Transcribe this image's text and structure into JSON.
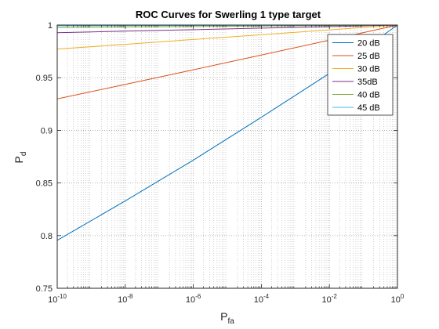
{
  "chart_data": {
    "type": "line",
    "title": "ROC Curves for Swerling 1 type target",
    "xlabel": {
      "base": "P",
      "sub": "fa"
    },
    "ylabel": {
      "base": "P",
      "sub": "d"
    },
    "xscale": "log",
    "xlim": [
      1e-10,
      1
    ],
    "ylim": [
      0.75,
      1
    ],
    "grid": true,
    "legend_position": "top-right",
    "x_ticks": [
      {
        "value": 1e-10,
        "base": "10",
        "exp": "-10"
      },
      {
        "value": 1e-08,
        "base": "10",
        "exp": "-8"
      },
      {
        "value": 1e-06,
        "base": "10",
        "exp": "-6"
      },
      {
        "value": 0.0001,
        "base": "10",
        "exp": "-4"
      },
      {
        "value": 0.01,
        "base": "10",
        "exp": "-2"
      },
      {
        "value": 1,
        "base": "10",
        "exp": "0"
      }
    ],
    "y_ticks": [
      {
        "value": 0.75,
        "label": "0.75"
      },
      {
        "value": 0.8,
        "label": "0.8"
      },
      {
        "value": 0.85,
        "label": "0.85"
      },
      {
        "value": 0.9,
        "label": "0.9"
      },
      {
        "value": 0.95,
        "label": "0.95"
      },
      {
        "value": 1,
        "label": "1"
      }
    ],
    "series": [
      {
        "name": "20 dB",
        "color": "#0072BD",
        "x": [
          1e-10,
          1e-08,
          1e-06,
          0.0001,
          0.01,
          1
        ],
        "y": [
          0.7955,
          0.833,
          0.8717,
          0.9124,
          0.9541,
          1.0
        ]
      },
      {
        "name": "25 dB",
        "color": "#D95319",
        "x": [
          1e-10,
          1e-08,
          1e-06,
          0.0001,
          0.01,
          1
        ],
        "y": [
          0.9299,
          0.9436,
          0.9575,
          0.9715,
          0.9857,
          1.0
        ]
      },
      {
        "name": "30 dB",
        "color": "#EDB120",
        "x": [
          1e-10,
          1e-08,
          1e-06,
          0.0001,
          0.01,
          1
        ],
        "y": [
          0.9772,
          0.9817,
          0.9863,
          0.9908,
          0.9954,
          1.0
        ]
      },
      {
        "name": "35dB",
        "color": "#7E2F8E",
        "x": [
          1e-10,
          1e-08,
          1e-06,
          0.0001,
          0.01,
          1
        ],
        "y": [
          0.9927,
          0.9942,
          0.9956,
          0.9971,
          0.9985,
          1.0
        ]
      },
      {
        "name": "40 dB",
        "color": "#77AC30",
        "x": [
          1e-10,
          1e-08,
          1e-06,
          0.0001,
          0.01,
          1
        ],
        "y": [
          0.9977,
          0.9982,
          0.9986,
          0.9991,
          0.9995,
          1.0
        ]
      },
      {
        "name": "45 dB",
        "color": "#4DBEEE",
        "x": [
          1e-10,
          1e-08,
          1e-06,
          0.0001,
          0.01,
          1
        ],
        "y": [
          0.9993,
          0.9994,
          0.9996,
          0.9997,
          0.9999,
          1.0
        ]
      }
    ]
  }
}
